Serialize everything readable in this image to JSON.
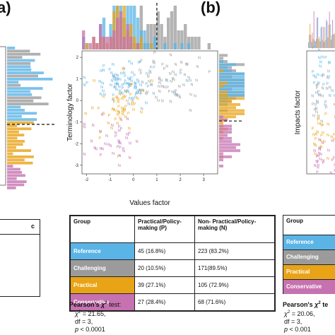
{
  "panel_labels": {
    "left": "a)",
    "center": "(b)"
  },
  "colors": {
    "Reference": "#5ab4e6",
    "Challenging": "#9b9b9b",
    "Practical": "#e8a317",
    "Conservative": "#c672b0"
  },
  "chart_data": [
    {
      "type": "scatter",
      "title": "",
      "xlabel": "Values factor",
      "ylabel": "Terminology factor",
      "xlim": [
        -2.2,
        3.6
      ],
      "ylim": [
        -3.4,
        2.3
      ],
      "xticks": [
        -2,
        -1,
        0,
        1,
        2,
        3
      ],
      "yticks": [
        -3,
        -2,
        -1,
        0,
        1,
        2
      ],
      "marker_labels": [
        "P",
        "N"
      ],
      "top_histogram_threshold_x": 1.0,
      "right_histogram_threshold_y": -0.95,
      "series": [
        {
          "name": "Reference",
          "center": [
            -0.3,
            0.7
          ],
          "spread": [
            0.7,
            0.45
          ],
          "count": 90
        },
        {
          "name": "Challenging",
          "center": [
            1.4,
            0.8
          ],
          "spread": [
            0.9,
            0.55
          ],
          "count": 75
        },
        {
          "name": "Practical",
          "center": [
            -0.6,
            -0.3
          ],
          "spread": [
            0.6,
            0.55
          ],
          "count": 55
        },
        {
          "name": "Conservative",
          "center": [
            -0.8,
            -1.9
          ],
          "spread": [
            0.6,
            0.6
          ],
          "count": 40
        }
      ]
    },
    {
      "type": "table",
      "headers": [
        "Group",
        "Practical/Policy-making (P)",
        "Non- Practical/Policy-making (N)"
      ],
      "rows": [
        {
          "group": "Reference",
          "p": "45 (16.8%)",
          "n": "223 (83.2%)"
        },
        {
          "group": "Challenging",
          "p": "20 (10.5%)",
          "n": "171(89.5%)"
        },
        {
          "group": "Practical",
          "p": "39 (27.1%)",
          "n": "105 (72.9%)"
        },
        {
          "group": "Conservative",
          "p": "27 (28.4%)",
          "n": "68 (71.6%)"
        }
      ]
    }
  ],
  "stats_center": {
    "title_a": "Pearson's ",
    "title_b": "χ",
    "title_c": "2",
    "title_d": " test:",
    "chi": "χ",
    "chi_sup": "2",
    "chi_val": " = 21.65,",
    "df": "df = 3,",
    "p_a": "p",
    "p_b": " < 0.0001"
  },
  "stats_right": {
    "title": "Pearson's",
    "title_b": " χ",
    "title_c": "2",
    "title_d": " te",
    "chi": "χ",
    "chi_sup": "2",
    "chi_val": " = 20.06,",
    "df": "df = 3,",
    "p_a": "p",
    "p_b": " < 0.001"
  },
  "right_panel": {
    "ylabel": "Impacts factor",
    "table_rows": [
      "Group",
      "Reference",
      "Challenging",
      "Practical",
      "Conservative"
    ]
  },
  "left_panel": {
    "table_header": "c"
  }
}
